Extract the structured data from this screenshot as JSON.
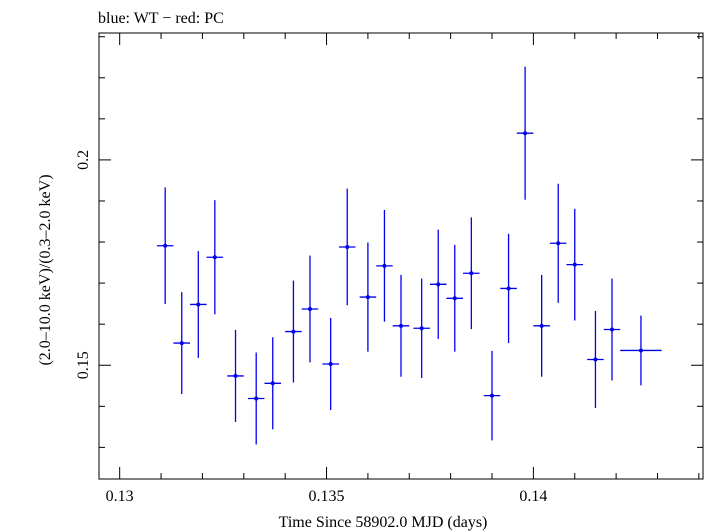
{
  "chart_data": {
    "type": "scatter",
    "title": "blue: WT − red: PC",
    "xlabel": "Time Since 58902.0 MJD (days)",
    "ylabel": "(2.0–10.0 keV)/(0.3–2.0 keV)",
    "xlim": [
      0.1295,
      0.1441
    ],
    "ylim": [
      0.1223,
      0.2309
    ],
    "x_ticks": [
      0.13,
      0.135,
      0.14
    ],
    "x_tick_labels": [
      "0.13",
      "0.135",
      "0.14"
    ],
    "y_ticks": [
      0.15,
      0.2
    ],
    "y_tick_labels": [
      "0.15",
      "0.2"
    ],
    "grid": false,
    "series": [
      {
        "color": "#0000ee",
        "points": [
          {
            "x": 0.1311,
            "xerr": 0.0002,
            "y": 0.1791,
            "yerr": 0.0142
          },
          {
            "x": 0.1315,
            "xerr": 0.0002,
            "y": 0.1554,
            "yerr": 0.0124
          },
          {
            "x": 0.1319,
            "xerr": 0.0002,
            "y": 0.1648,
            "yerr": 0.013
          },
          {
            "x": 0.1323,
            "xerr": 0.0002,
            "y": 0.1763,
            "yerr": 0.0139
          },
          {
            "x": 0.1328,
            "xerr": 0.0002,
            "y": 0.1474,
            "yerr": 0.0112
          },
          {
            "x": 0.1333,
            "xerr": 0.0002,
            "y": 0.1419,
            "yerr": 0.0112
          },
          {
            "x": 0.1337,
            "xerr": 0.0002,
            "y": 0.1456,
            "yerr": 0.0112
          },
          {
            "x": 0.1342,
            "xerr": 0.0002,
            "y": 0.1582,
            "yerr": 0.0124
          },
          {
            "x": 0.1346,
            "xerr": 0.0002,
            "y": 0.1637,
            "yerr": 0.013
          },
          {
            "x": 0.1351,
            "xerr": 0.0002,
            "y": 0.1503,
            "yerr": 0.0112
          },
          {
            "x": 0.1355,
            "xerr": 0.0002,
            "y": 0.1788,
            "yerr": 0.0142
          },
          {
            "x": 0.136,
            "xerr": 0.0002,
            "y": 0.1666,
            "yerr": 0.0133
          },
          {
            "x": 0.1364,
            "xerr": 0.0002,
            "y": 0.1742,
            "yerr": 0.0136
          },
          {
            "x": 0.1368,
            "xerr": 0.0002,
            "y": 0.1596,
            "yerr": 0.0124
          },
          {
            "x": 0.1373,
            "xerr": 0.0002,
            "y": 0.159,
            "yerr": 0.0121
          },
          {
            "x": 0.1377,
            "xerr": 0.0002,
            "y": 0.1697,
            "yerr": 0.0133
          },
          {
            "x": 0.1381,
            "xerr": 0.0002,
            "y": 0.1663,
            "yerr": 0.013
          },
          {
            "x": 0.1385,
            "xerr": 0.0002,
            "y": 0.1724,
            "yerr": 0.0136
          },
          {
            "x": 0.139,
            "xerr": 0.0002,
            "y": 0.1426,
            "yerr": 0.0109
          },
          {
            "x": 0.1394,
            "xerr": 0.0002,
            "y": 0.1687,
            "yerr": 0.0133
          },
          {
            "x": 0.1398,
            "xerr": 0.0002,
            "y": 0.2065,
            "yerr": 0.0162
          },
          {
            "x": 0.1402,
            "xerr": 0.0002,
            "y": 0.1596,
            "yerr": 0.0124
          },
          {
            "x": 0.1406,
            "xerr": 0.0002,
            "y": 0.1797,
            "yerr": 0.0145
          },
          {
            "x": 0.141,
            "xerr": 0.0002,
            "y": 0.1745,
            "yerr": 0.0136
          },
          {
            "x": 0.1415,
            "xerr": 0.0002,
            "y": 0.1514,
            "yerr": 0.0118
          },
          {
            "x": 0.1419,
            "xerr": 0.0002,
            "y": 0.1587,
            "yerr": 0.0124
          },
          {
            "x": 0.1426,
            "xerr": 0.0005,
            "y": 0.1536,
            "yerr": 0.0085
          }
        ]
      }
    ]
  }
}
